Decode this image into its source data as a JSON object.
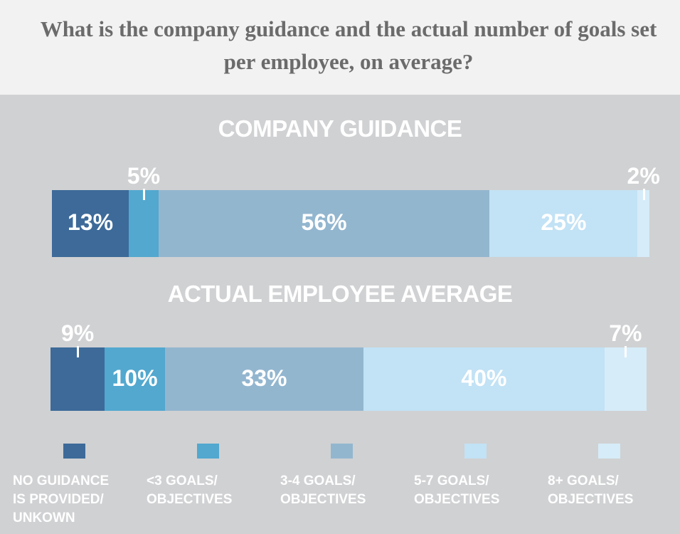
{
  "chart_data": {
    "type": "bar",
    "orientation": "horizontal-stacked-100",
    "title": "What is the company guidance and the actual number of goals set per employee, on average?",
    "categories": [
      "NO GUIDANCE IS PROVIDED/ UNKOWN",
      "<3 GOALS/ OBJECTIVES",
      "3-4 GOALS/ OBJECTIVES",
      "5-7 GOALS/ OBJECTIVES",
      "8+ GOALS/ OBJECTIVES"
    ],
    "legend_lines": [
      [
        "NO GUIDANCE",
        "IS PROVIDED/",
        "UNKOWN"
      ],
      [
        "<3 GOALS/",
        "OBJECTIVES"
      ],
      [
        "3-4 GOALS/",
        "OBJECTIVES"
      ],
      [
        "5-7 GOALS/",
        "OBJECTIVES"
      ],
      [
        "8+ GOALS/",
        "OBJECTIVES"
      ]
    ],
    "colors": [
      "#3d6a99",
      "#52a8cf",
      "#93b6cf",
      "#c2e2f5",
      "#d6ecf8"
    ],
    "series": [
      {
        "name": "COMPANY GUIDANCE",
        "values": [
          13,
          5,
          56,
          25,
          2
        ],
        "labels": [
          "13%",
          "5%",
          "56%",
          "25%",
          "2%"
        ]
      },
      {
        "name": "ACTUAL EMPLOYEE AVERAGE",
        "values": [
          9,
          10,
          33,
          40,
          7
        ],
        "labels": [
          "9%",
          "10%",
          "33%",
          "40%",
          "7%"
        ]
      }
    ],
    "legend": "bottom",
    "grid": false
  }
}
